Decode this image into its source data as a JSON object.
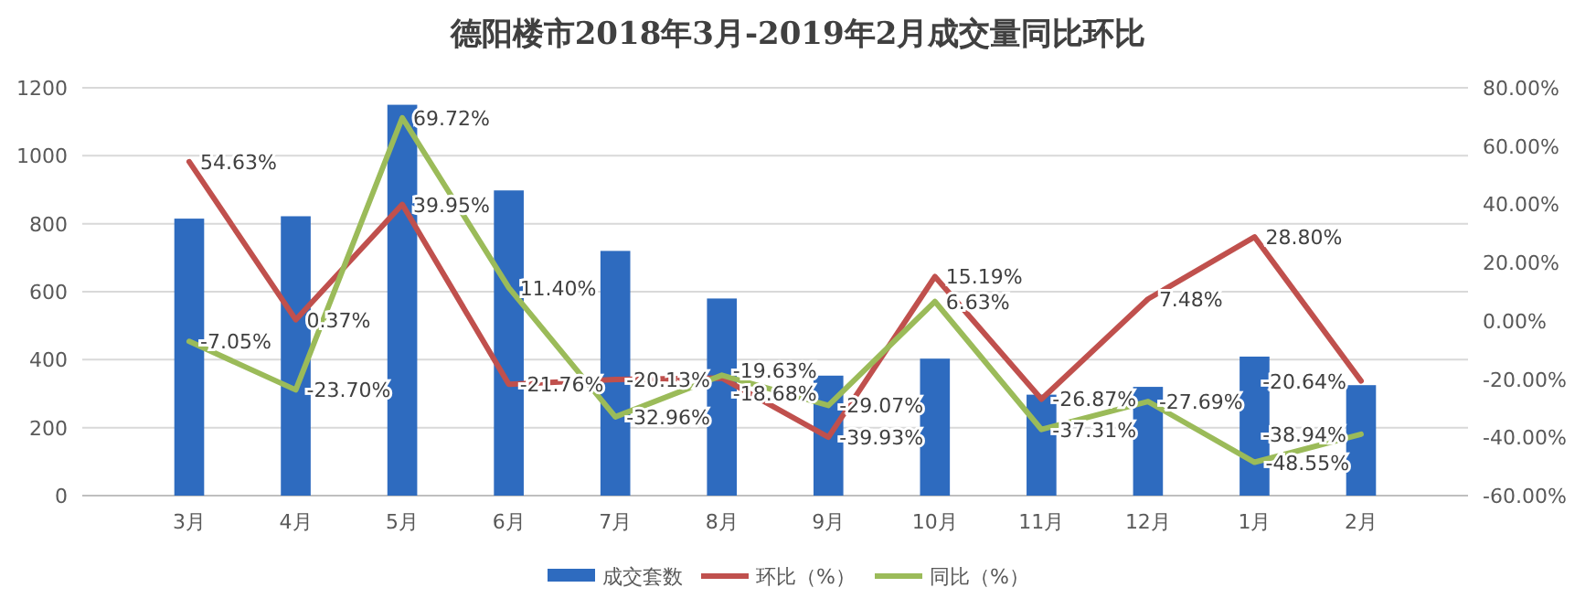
{
  "chart_data": {
    "type": "bar",
    "title": "德阳楼市2018年3月-2019年2月成交量同比环比",
    "categories": [
      "3月",
      "4月",
      "5月",
      "6月",
      "7月",
      "8月",
      "9月",
      "10月",
      "11月",
      "12月",
      "1月",
      "2月"
    ],
    "series": [
      {
        "name": "成交套数",
        "type": "bar",
        "color": "#2e6bbf",
        "values": [
          815,
          822,
          1150,
          898,
          720,
          580,
          353,
          403,
          297,
          320,
          409,
          325
        ]
      },
      {
        "name": "环比（%）",
        "type": "line",
        "axis": "y2",
        "color": "#c0504d",
        "values": [
          54.63,
          0.37,
          39.95,
          -21.76,
          -20.13,
          -19.63,
          -39.93,
          15.19,
          -26.87,
          7.48,
          28.8,
          -20.64
        ],
        "value_labels": [
          "54.63%",
          "0.37%",
          "39.95%",
          "-21.76%",
          "-20.13%",
          "-19.63%",
          "-39.93%",
          "15.19%",
          "-26.87%",
          "7.48%",
          "28.80%",
          "-20.64%"
        ]
      },
      {
        "name": "同比（%）",
        "type": "line",
        "axis": "y2",
        "color": "#9bbb59",
        "values": [
          -7.05,
          -23.7,
          69.72,
          11.4,
          -32.96,
          -18.68,
          -29.07,
          6.63,
          -37.31,
          -27.69,
          -48.55,
          -38.94
        ],
        "value_labels": [
          "-7.05%",
          "-23.70%",
          "69.72%",
          "11.40%",
          "-32.96%",
          "-18.68%",
          "-29.07%",
          "6.63%",
          "-37.31%",
          "-27.69%",
          "-48.55%",
          "-38.94%"
        ]
      }
    ],
    "ylim": [
      0,
      1200
    ],
    "yticks": [
      0,
      200,
      400,
      600,
      800,
      1000,
      1200
    ],
    "y2lim": [
      -60,
      80
    ],
    "y2ticks": [
      {
        "value": -60,
        "label": "-60.00%"
      },
      {
        "value": -40,
        "label": "-40.00%"
      },
      {
        "value": -20,
        "label": "-20.00%"
      },
      {
        "value": 0,
        "label": "0.00%"
      },
      {
        "value": 20,
        "label": "20.00%"
      },
      {
        "value": 40,
        "label": "40.00%"
      },
      {
        "value": 60,
        "label": "60.00%"
      },
      {
        "value": 80,
        "label": "80.00%"
      }
    ],
    "grid": "y",
    "legend": "bottom",
    "marker": "none",
    "line_style": "solid"
  }
}
